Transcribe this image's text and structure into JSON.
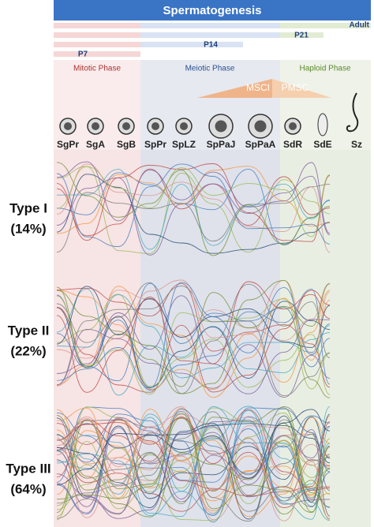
{
  "header": {
    "title": "Spermatogenesis"
  },
  "ages": [
    "Adult",
    "P21",
    "P14",
    "P7"
  ],
  "phases": [
    "Mitotic Phase",
    "Meiotic Phase",
    "Haploid Phase"
  ],
  "inactivation": [
    "MSCI",
    "PMSC"
  ],
  "cells": [
    "SgPr",
    "SgA",
    "SgB",
    "SpPr",
    "SpLZ",
    "SpPaJ",
    "SpPaA",
    "SdR",
    "SdE",
    "Sz"
  ],
  "types": [
    {
      "name": "Type I",
      "share": "(14%)"
    },
    {
      "name": "Type II",
      "share": "(22%)"
    },
    {
      "name": "Type III",
      "share": "(64%)"
    }
  ]
}
